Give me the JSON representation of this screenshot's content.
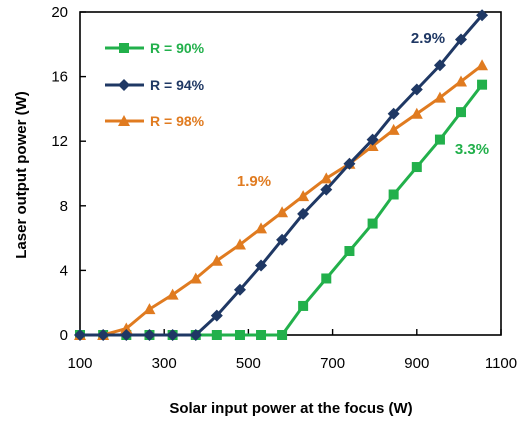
{
  "chart_data": {
    "type": "line",
    "xlabel": "Solar input power at the focus (W)",
    "ylabel": "Laser output power (W)",
    "xlim": [
      100,
      1100
    ],
    "ylim": [
      0,
      20
    ],
    "x_ticks": [
      "100",
      "300",
      "500",
      "700",
      "900",
      "1100"
    ],
    "y_ticks": [
      "0",
      "4",
      "8",
      "12",
      "16",
      "20"
    ],
    "grid": false,
    "legend_position": "top-left",
    "series": [
      {
        "name": "R = 90%",
        "color": "#22b04b",
        "marker": "square",
        "x": [
          100,
          155,
          210,
          265,
          320,
          375,
          425,
          480,
          530,
          580,
          630,
          685,
          740,
          795,
          845,
          900,
          955,
          1005,
          1055
        ],
        "y": [
          0,
          0,
          0,
          0,
          0,
          0,
          0,
          0,
          0,
          0,
          1.8,
          3.5,
          5.2,
          6.9,
          8.7,
          10.4,
          12.1,
          13.8,
          15.5
        ]
      },
      {
        "name": "R = 94%",
        "color": "#1f3864",
        "marker": "diamond",
        "x": [
          100,
          155,
          210,
          265,
          320,
          375,
          425,
          480,
          530,
          580,
          630,
          685,
          740,
          795,
          845,
          900,
          955,
          1005,
          1055
        ],
        "y": [
          0,
          0,
          0,
          0,
          0,
          0,
          1.2,
          2.8,
          4.3,
          5.9,
          7.5,
          9.0,
          10.6,
          12.1,
          13.7,
          15.2,
          16.7,
          18.3,
          19.8
        ]
      },
      {
        "name": "R = 98%",
        "color": "#e07b20",
        "marker": "triangle",
        "x": [
          100,
          155,
          210,
          265,
          320,
          375,
          425,
          480,
          530,
          580,
          630,
          685,
          740,
          795,
          845,
          900,
          955,
          1005,
          1055
        ],
        "y": [
          0,
          0,
          0.4,
          1.6,
          2.5,
          3.5,
          4.6,
          5.6,
          6.6,
          7.6,
          8.6,
          9.7,
          10.6,
          11.7,
          12.7,
          13.7,
          14.7,
          15.7,
          16.7
        ]
      }
    ],
    "annotations": [
      {
        "text": "2.9%",
        "color": "#1f3864"
      },
      {
        "text": "3.3%",
        "color": "#22b04b"
      },
      {
        "text": "1.9%",
        "color": "#e07b20"
      }
    ]
  }
}
